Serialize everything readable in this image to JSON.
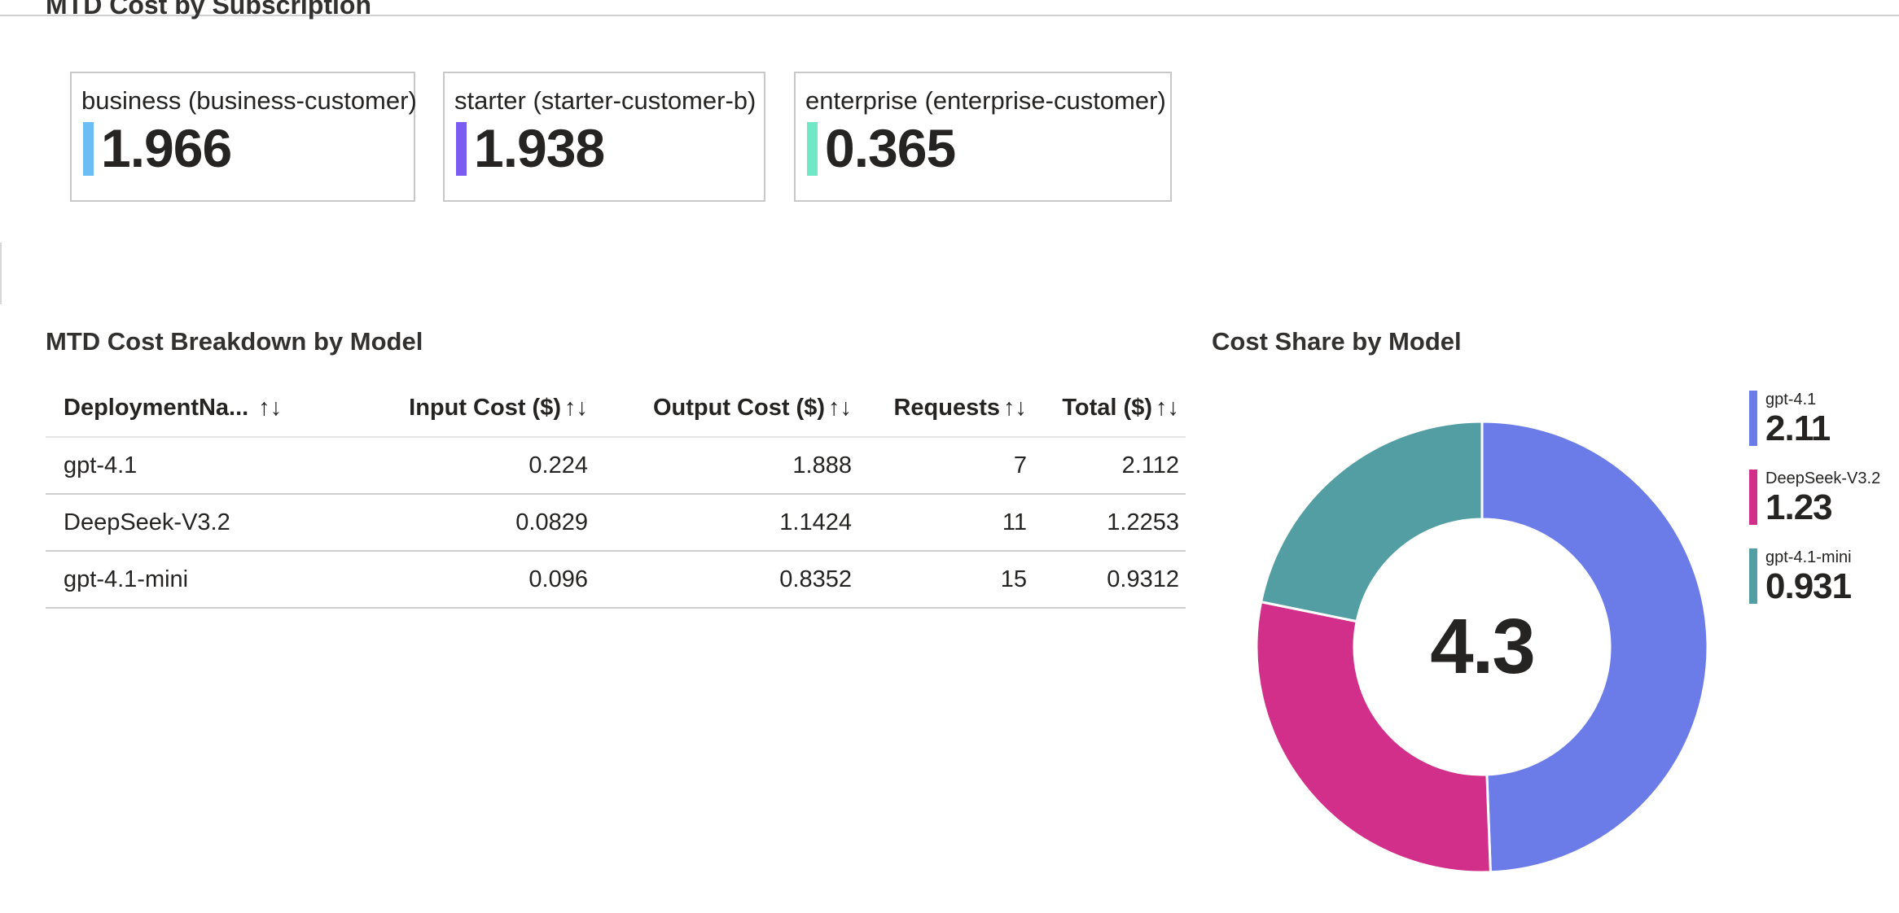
{
  "subscription_section": {
    "title": "MTD Cost by Subscription"
  },
  "subscription_tiles": [
    {
      "label": "business (business-customer)",
      "value": "1.966",
      "color": "#6bbdf3"
    },
    {
      "label": "starter (starter-customer-b)",
      "value": "1.938",
      "color": "#7b5cf0"
    },
    {
      "label": "enterprise (enterprise-customer)",
      "value": "0.365",
      "color": "#6ee8c5"
    }
  ],
  "breakdown_section": {
    "title": "MTD Cost Breakdown by Model",
    "columns": [
      "DeploymentNa...",
      "Input Cost ($)",
      "Output Cost ($)",
      "Requests",
      "Total ($)"
    ],
    "sort_icon": "↑↓",
    "rows": [
      [
        "gpt-4.1",
        "0.224",
        "1.888",
        "7",
        "2.112"
      ],
      [
        "DeepSeek-V3.2",
        "0.0829",
        "1.1424",
        "11",
        "1.2253"
      ],
      [
        "gpt-4.1-mini",
        "0.096",
        "0.8352",
        "15",
        "0.9312"
      ]
    ]
  },
  "share_section": {
    "title": "Cost Share by Model",
    "center_label": "4.3"
  },
  "chart_data": {
    "type": "pie",
    "title": "Cost Share by Model",
    "categories": [
      "gpt-4.1",
      "DeepSeek-V3.2",
      "gpt-4.1-mini"
    ],
    "values": [
      2.11,
      1.23,
      0.931
    ],
    "colors": [
      "#6b7ce9",
      "#d22f8a",
      "#539ea3"
    ],
    "legend_values": [
      "2.11",
      "1.23",
      "0.931"
    ],
    "center_total": "4.3",
    "legend_position": "right"
  }
}
